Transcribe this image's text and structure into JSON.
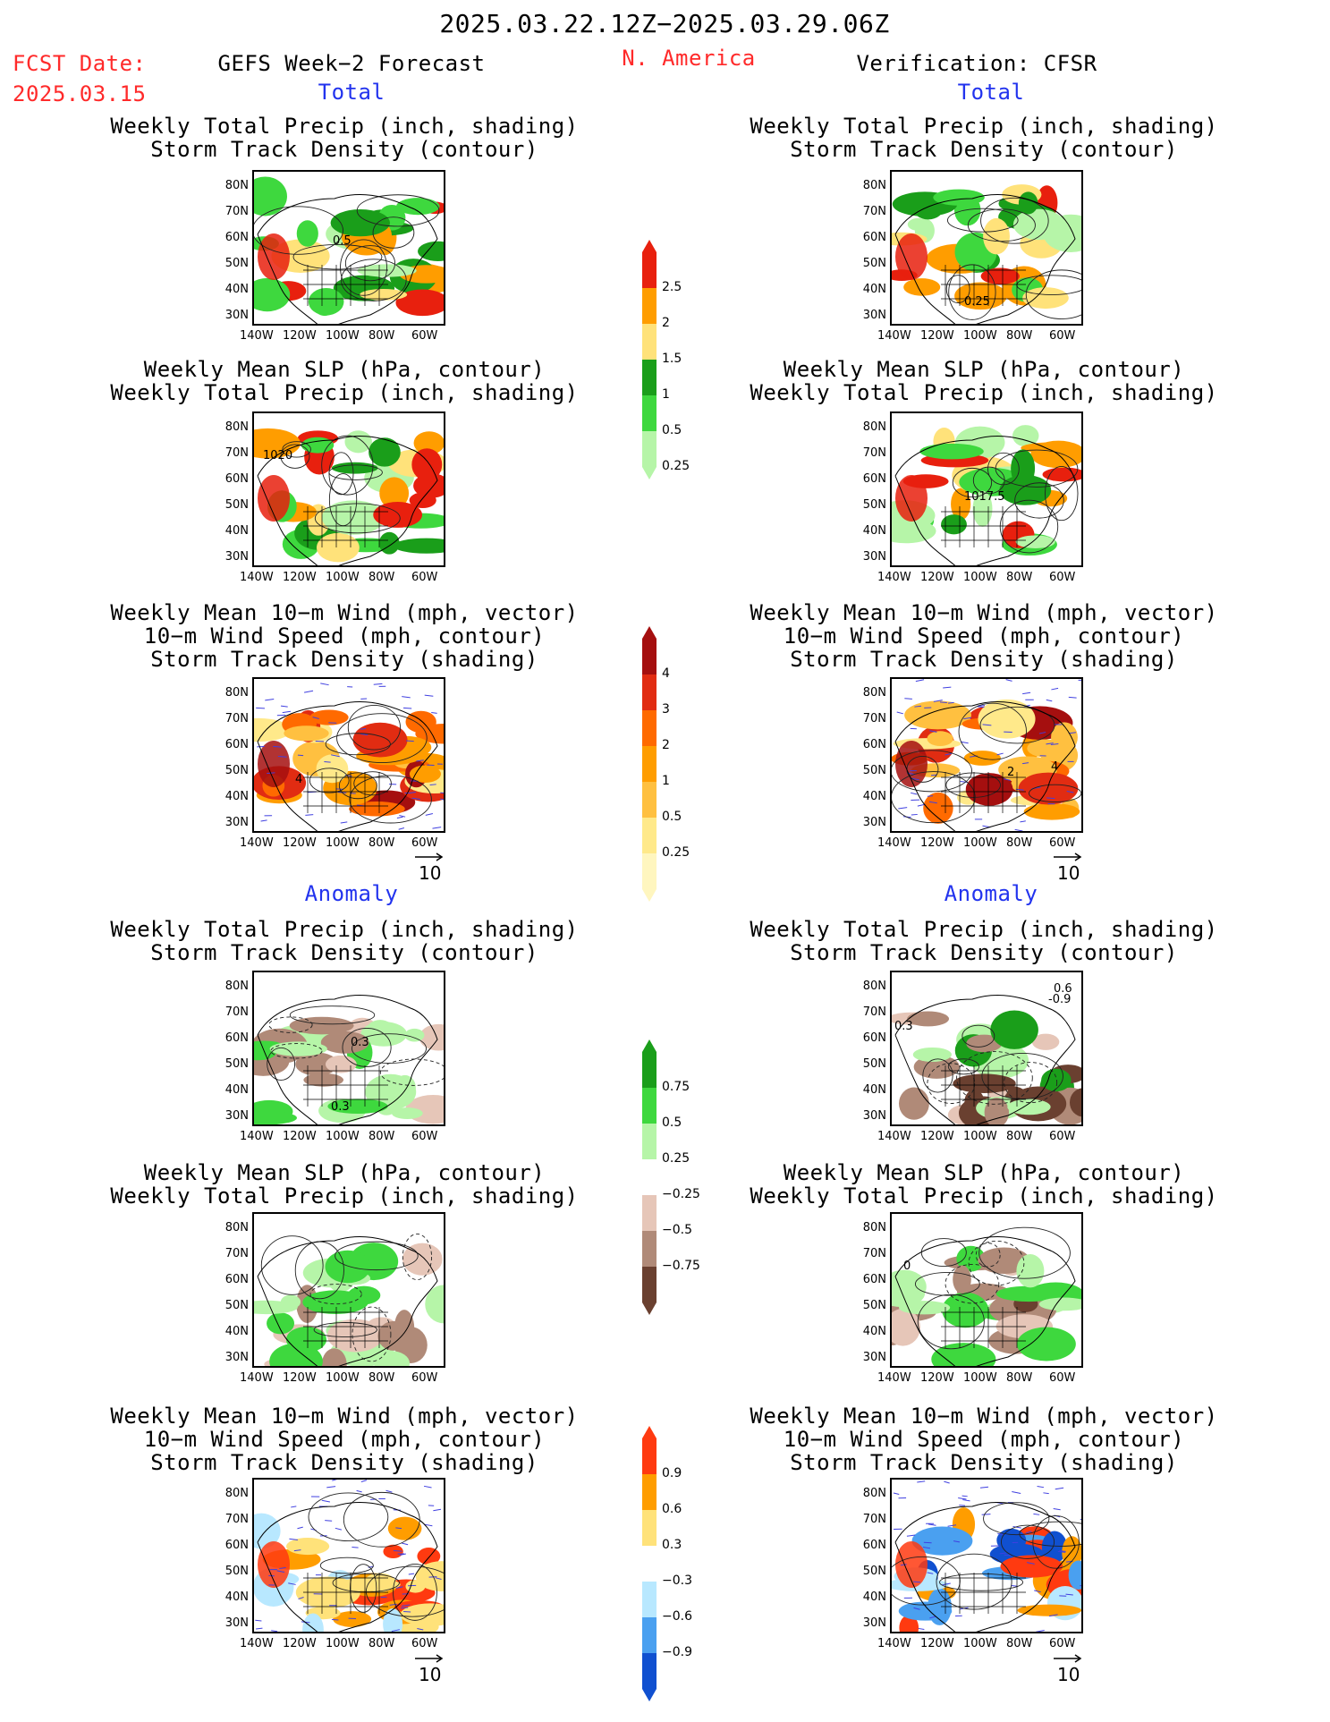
{
  "header": {
    "period": "2025.03.22.12Z−2025.03.29.06Z",
    "fcst_label": "FCST Date:",
    "fcst_date": "2025.03.15",
    "left_title": "GEFS Week−2 Forecast",
    "region": "N. America",
    "right_title": "Verification: CFSR"
  },
  "sections": {
    "total": "Total",
    "anomaly": "Anomaly"
  },
  "panel_titles": {
    "precip_track": [
      "Weekly Total Precip (inch, shading)",
      "Storm Track Density (contour)"
    ],
    "slp_precip": [
      "Weekly Mean SLP (hPa, contour)",
      "Weekly Total Precip (inch, shading)"
    ],
    "wind_track": [
      "Weekly Mean 10−m Wind (mph, vector)",
      "10−m Wind Speed (mph, contour)",
      "Storm Track Density (shading)"
    ]
  },
  "axes": {
    "lat": [
      "80N",
      "70N",
      "60N",
      "50N",
      "40N",
      "30N"
    ],
    "lon": [
      "140W",
      "120W",
      "100W",
      "80W",
      "60W"
    ]
  },
  "vector_ref": "10",
  "contour_labels": {
    "fc_precip_total": "0.5",
    "ob_precip_total": "0.25",
    "fc_slp_total": "1020",
    "ob_slp_total": "1017.5",
    "fc_wind_total": "4",
    "ob_wind_total_a": "4",
    "ob_wind_total_b": "2",
    "fc_precip_anom_a": "0.3",
    "fc_precip_anom_b": "0.3",
    "ob_precip_anom_a": "0.6",
    "ob_precip_anom_b": "-0.9",
    "ob_precip_anom_c": "0.3",
    "ob_slp_anom": "0"
  },
  "colorbars": {
    "precip_total": {
      "labels": [
        "2.5",
        "2",
        "1.5",
        "1",
        "0.5",
        "0.25"
      ],
      "colors": [
        "#e8200e",
        "#ff9d00",
        "#ffe27a",
        "#1a9e1a",
        "#3ed83e",
        "#b6f5a8"
      ]
    },
    "track_total": {
      "labels": [
        "4",
        "3",
        "2",
        "1",
        "0.5",
        "0.25"
      ],
      "colors": [
        "#a50f0f",
        "#e12c12",
        "#ff6a00",
        "#ff9d00",
        "#ffc040",
        "#ffe98a",
        "#fff6bf"
      ]
    },
    "precip_anom": {
      "labels": [
        "0.75",
        "0.5",
        "0.25",
        "−0.25",
        "−0.5",
        "−0.75"
      ],
      "colors": [
        "#1a9e1a",
        "#3ed83e",
        "#b6f5a8",
        "#ffffff",
        "#e6c6b8",
        "#b08a78",
        "#6a4030"
      ]
    },
    "track_anom": {
      "labels": [
        "0.9",
        "0.6",
        "0.3",
        "−0.3",
        "−0.6",
        "−0.9"
      ],
      "colors": [
        "#ff3a10",
        "#ff9d00",
        "#ffe27a",
        "#ffffff",
        "#b8e8ff",
        "#4aa0f0",
        "#1050d0"
      ]
    }
  }
}
